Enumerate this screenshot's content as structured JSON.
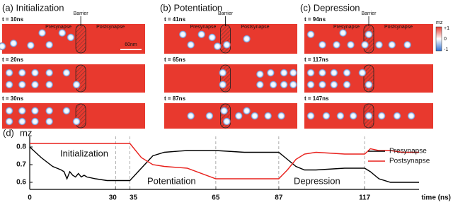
{
  "panels": [
    {
      "title": "(a) Initialization",
      "times": [
        "t = 10ns",
        "t = 20ns",
        "t = 30ns"
      ]
    },
    {
      "title": "(b) Potentiation",
      "times": [
        "t = 41ns",
        "t = 65ns",
        "t = 87ns"
      ]
    },
    {
      "title": "(c) Depression",
      "times": [
        "t = 94ns",
        "t = 117ns",
        "t = 147ns"
      ]
    }
  ],
  "labels": {
    "presynapse": "Presynapse",
    "postsynapse": "Postsynapse",
    "barrier": "Barrier",
    "scale": "60nm"
  },
  "colorbar": {
    "label": "mz",
    "ticks": [
      "+1",
      "0",
      "-1"
    ]
  },
  "chart_data": {
    "type": "line",
    "panel_label": "(d)",
    "ylabel": "mz",
    "xlabel": "time (ns)",
    "annotations": [
      "Initialization",
      "Potentiation",
      "Depression"
    ],
    "x": [
      0,
      4,
      8,
      11,
      12,
      13,
      14,
      15,
      16,
      17,
      18,
      19,
      20,
      23,
      27,
      30,
      35,
      39,
      43,
      47,
      55,
      65,
      75,
      87,
      90,
      93,
      96,
      100,
      110,
      117,
      119,
      122,
      126,
      130,
      136
    ],
    "series": [
      {
        "name": "Presynapse",
        "color": "#000000",
        "values": [
          0.8,
          0.74,
          0.69,
          0.67,
          0.66,
          0.62,
          0.66,
          0.64,
          0.63,
          0.65,
          0.63,
          0.64,
          0.63,
          0.62,
          0.61,
          0.61,
          0.61,
          0.68,
          0.75,
          0.77,
          0.78,
          0.78,
          0.77,
          0.77,
          0.73,
          0.69,
          0.67,
          0.67,
          0.68,
          0.68,
          0.66,
          0.62,
          0.6,
          0.6,
          0.6
        ]
      },
      {
        "name": "Postsynapse",
        "color": "#e8201c",
        "values": [
          0.82,
          0.82,
          0.82,
          0.82,
          0.82,
          0.82,
          0.82,
          0.82,
          0.82,
          0.82,
          0.82,
          0.82,
          0.82,
          0.82,
          0.82,
          0.82,
          0.82,
          0.74,
          0.7,
          0.69,
          0.68,
          0.62,
          0.62,
          0.62,
          0.67,
          0.73,
          0.76,
          0.77,
          0.76,
          0.76,
          0.79,
          0.78,
          0.78,
          0.77,
          0.77
        ]
      }
    ],
    "xlim": [
      0,
      136
    ],
    "ylim": [
      0.56,
      0.86
    ],
    "xticks": [
      0,
      30,
      35,
      65,
      87,
      117
    ],
    "yticks": [
      0.6,
      0.7,
      0.8
    ],
    "grid": "x",
    "legend": "right"
  }
}
